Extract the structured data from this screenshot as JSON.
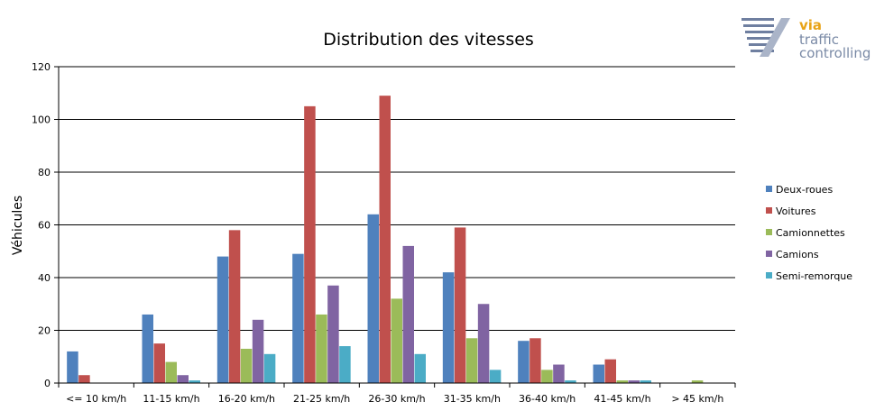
{
  "logo": {
    "line1": "via",
    "line2": "traffic",
    "line3": "controlling"
  },
  "chart_data": {
    "type": "bar",
    "title": "Distribution des vitesses",
    "xlabel": "",
    "ylabel": "Véhicules",
    "ylim": [
      0,
      120
    ],
    "yticks": [
      0,
      20,
      40,
      60,
      80,
      100,
      120
    ],
    "grid": true,
    "legend_position": "right",
    "categories": [
      "<= 10 km/h",
      "11-15 km/h",
      "16-20 km/h",
      "21-25 km/h",
      "26-30 km/h",
      "31-35 km/h",
      "36-40 km/h",
      "41-45 km/h",
      "> 45 km/h"
    ],
    "series": [
      {
        "name": "Deux-roues",
        "color": "#4f81bd",
        "values": [
          12,
          26,
          48,
          49,
          64,
          42,
          16,
          7,
          0
        ]
      },
      {
        "name": "Voitures",
        "color": "#c0504d",
        "values": [
          3,
          15,
          58,
          105,
          109,
          59,
          17,
          9,
          0
        ]
      },
      {
        "name": "Camionnettes",
        "color": "#9bbb59",
        "values": [
          0,
          8,
          13,
          26,
          32,
          17,
          5,
          1,
          1
        ]
      },
      {
        "name": "Camions",
        "color": "#8064a2",
        "values": [
          0,
          3,
          24,
          37,
          52,
          30,
          7,
          1,
          0
        ]
      },
      {
        "name": "Semi-remorque",
        "color": "#4bacc6",
        "values": [
          0,
          1,
          11,
          14,
          11,
          5,
          1,
          1,
          0
        ]
      }
    ]
  }
}
